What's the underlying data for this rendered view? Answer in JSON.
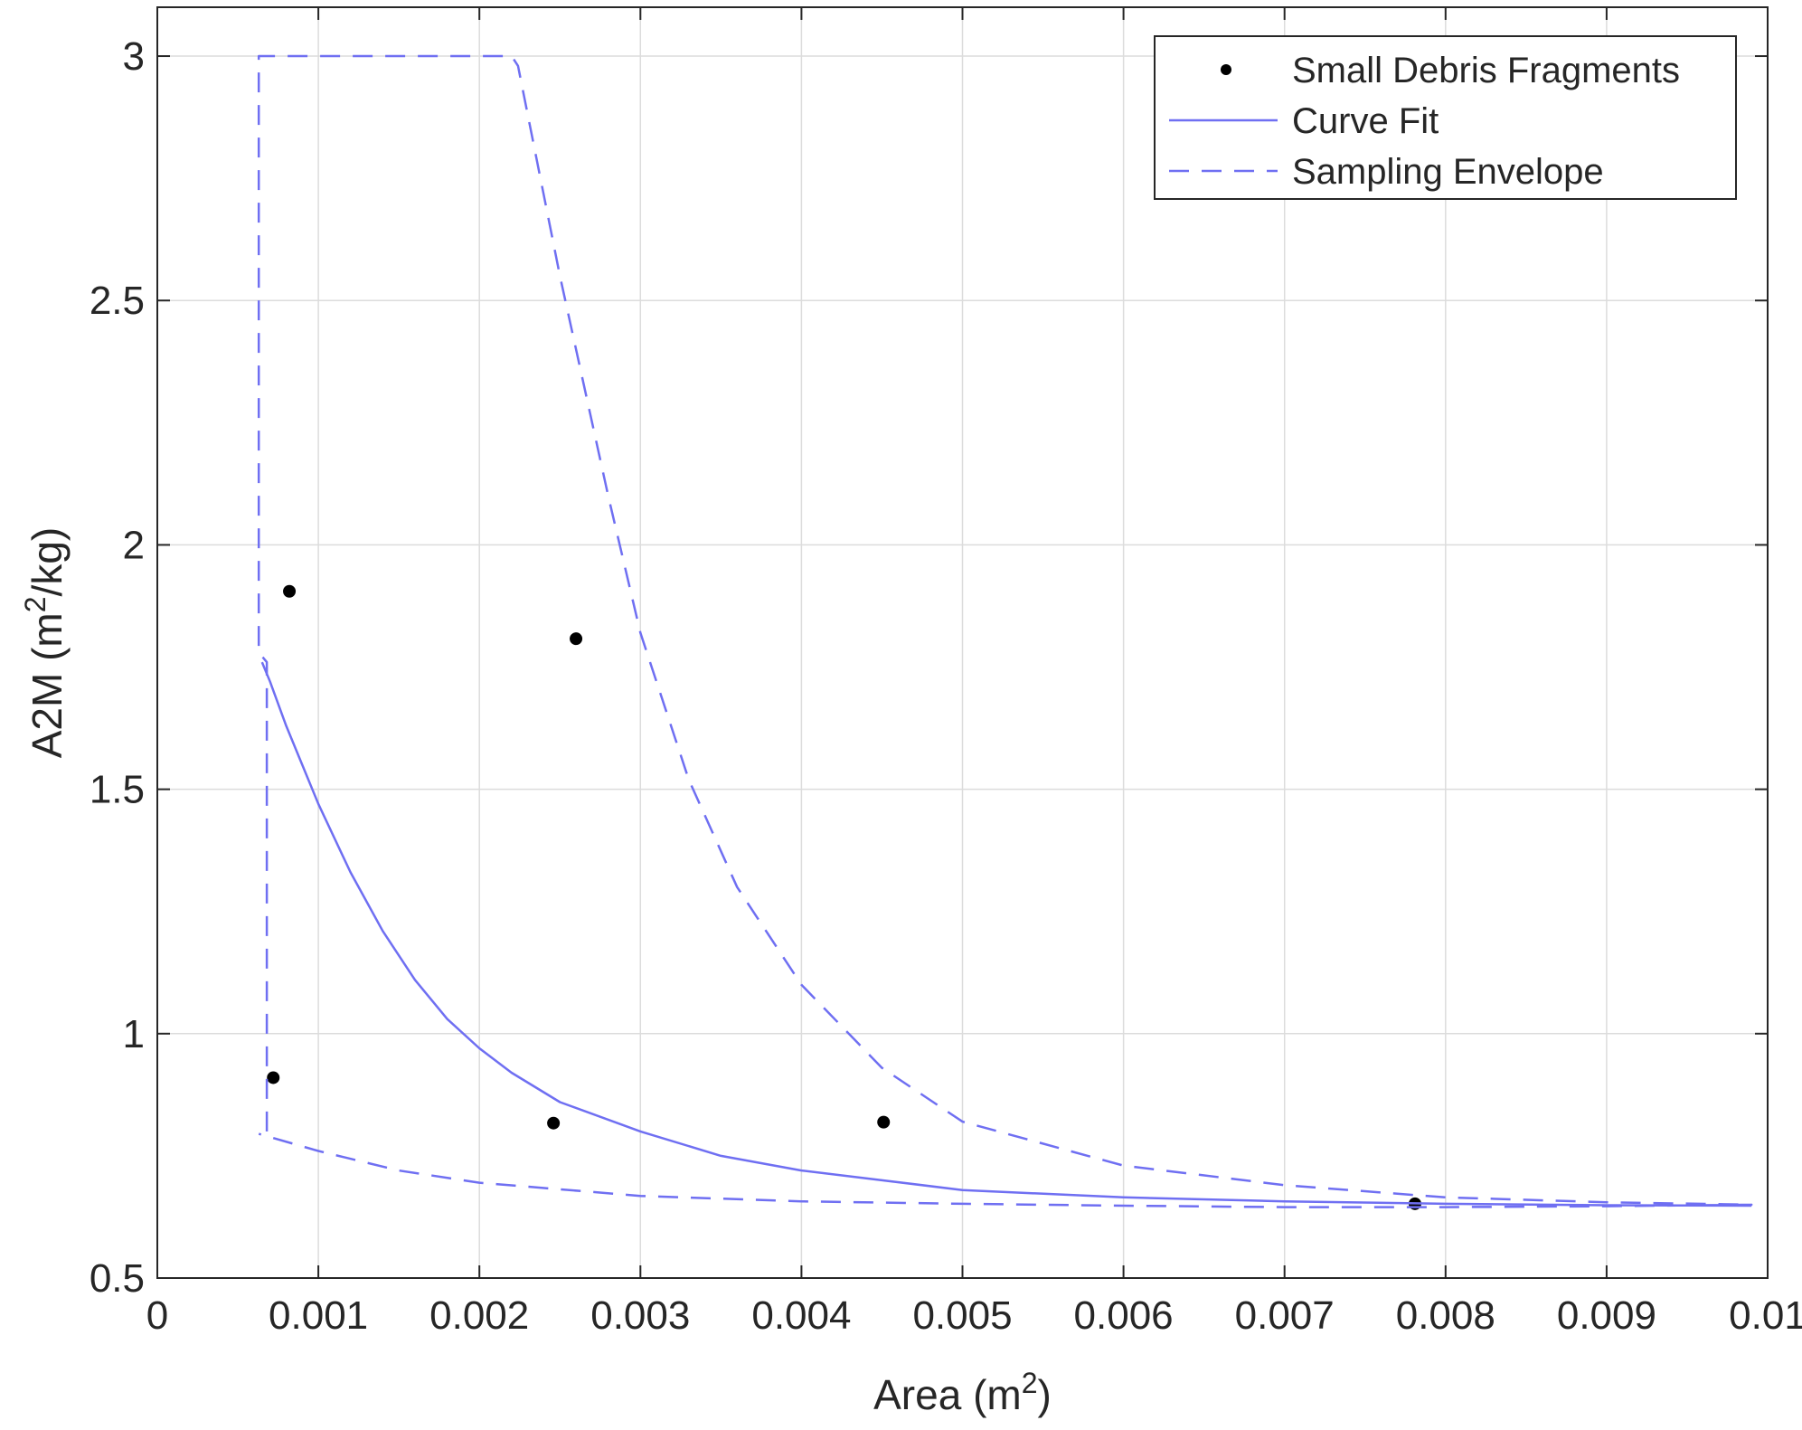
{
  "chart_data": {
    "type": "scatter",
    "title": "",
    "xlabel": "Area",
    "xlabel_unit_base": "m",
    "xlabel_unit_exp": "2",
    "ylabel": "A2M",
    "ylabel_unit_base": "m",
    "ylabel_unit_exp": "2",
    "ylabel_unit_tail": "/kg",
    "xlim": [
      0,
      0.01
    ],
    "ylim": [
      0.5,
      3.1
    ],
    "xticks": [
      0,
      0.001,
      0.002,
      0.003,
      0.004,
      0.005,
      0.006,
      0.007,
      0.008,
      0.009,
      0.01
    ],
    "xtick_labels": [
      "0",
      "0.001",
      "0.002",
      "0.003",
      "0.004",
      "0.005",
      "0.006",
      "0.007",
      "0.008",
      "0.009",
      "0.01"
    ],
    "yticks": [
      0.5,
      1,
      1.5,
      2,
      2.5,
      3
    ],
    "ytick_labels": [
      "0.5",
      "1",
      "1.5",
      "2",
      "2.5",
      "3"
    ],
    "grid": true,
    "legend_position": "top-right",
    "series": [
      {
        "name": "Small Debris Fragments",
        "kind": "points",
        "color": "#000000",
        "points": [
          [
            0.00072,
            0.91
          ],
          [
            0.00082,
            1.905
          ],
          [
            0.00246,
            0.817
          ],
          [
            0.0026,
            1.808
          ],
          [
            0.00451,
            0.819
          ],
          [
            0.00781,
            0.652
          ]
        ]
      },
      {
        "name": "Curve Fit",
        "kind": "line",
        "color": "#6f6ff2",
        "points": [
          [
            0.00065,
            1.76
          ],
          [
            0.0007,
            1.72
          ],
          [
            0.0008,
            1.63
          ],
          [
            0.0009,
            1.55
          ],
          [
            0.001,
            1.47
          ],
          [
            0.0012,
            1.33
          ],
          [
            0.0014,
            1.21
          ],
          [
            0.0016,
            1.11
          ],
          [
            0.0018,
            1.03
          ],
          [
            0.002,
            0.97
          ],
          [
            0.0022,
            0.92
          ],
          [
            0.0025,
            0.86
          ],
          [
            0.003,
            0.8
          ],
          [
            0.0035,
            0.75
          ],
          [
            0.004,
            0.72
          ],
          [
            0.0045,
            0.7
          ],
          [
            0.005,
            0.68
          ],
          [
            0.006,
            0.665
          ],
          [
            0.007,
            0.657
          ],
          [
            0.008,
            0.652
          ],
          [
            0.009,
            0.649
          ],
          [
            0.0099,
            0.648
          ]
        ]
      },
      {
        "name": "Sampling Envelope",
        "kind": "dashed-line",
        "color": "#6f6ff2",
        "points": [
          [
            0.00068,
            0.8
          ],
          [
            0.00068,
            1.76
          ],
          [
            0.00063,
            1.78
          ],
          [
            0.00063,
            3.0
          ],
          [
            0.0007,
            3.0
          ],
          [
            0.0022,
            3.0
          ],
          [
            0.00224,
            2.98
          ],
          [
            0.0025,
            2.55
          ],
          [
            0.0028,
            2.1
          ],
          [
            0.003,
            1.82
          ],
          [
            0.0033,
            1.52
          ],
          [
            0.0036,
            1.3
          ],
          [
            0.004,
            1.1
          ],
          [
            0.0045,
            0.93
          ],
          [
            0.005,
            0.82
          ],
          [
            0.006,
            0.73
          ],
          [
            0.007,
            0.69
          ],
          [
            0.008,
            0.665
          ],
          [
            0.009,
            0.655
          ],
          [
            0.0099,
            0.65
          ],
          [
            0.009,
            0.647
          ],
          [
            0.008,
            0.645
          ],
          [
            0.007,
            0.645
          ],
          [
            0.006,
            0.648
          ],
          [
            0.005,
            0.652
          ],
          [
            0.004,
            0.657
          ],
          [
            0.003,
            0.668
          ],
          [
            0.002,
            0.695
          ],
          [
            0.0015,
            0.72
          ],
          [
            0.001,
            0.76
          ],
          [
            0.00063,
            0.795
          ]
        ]
      }
    ]
  }
}
